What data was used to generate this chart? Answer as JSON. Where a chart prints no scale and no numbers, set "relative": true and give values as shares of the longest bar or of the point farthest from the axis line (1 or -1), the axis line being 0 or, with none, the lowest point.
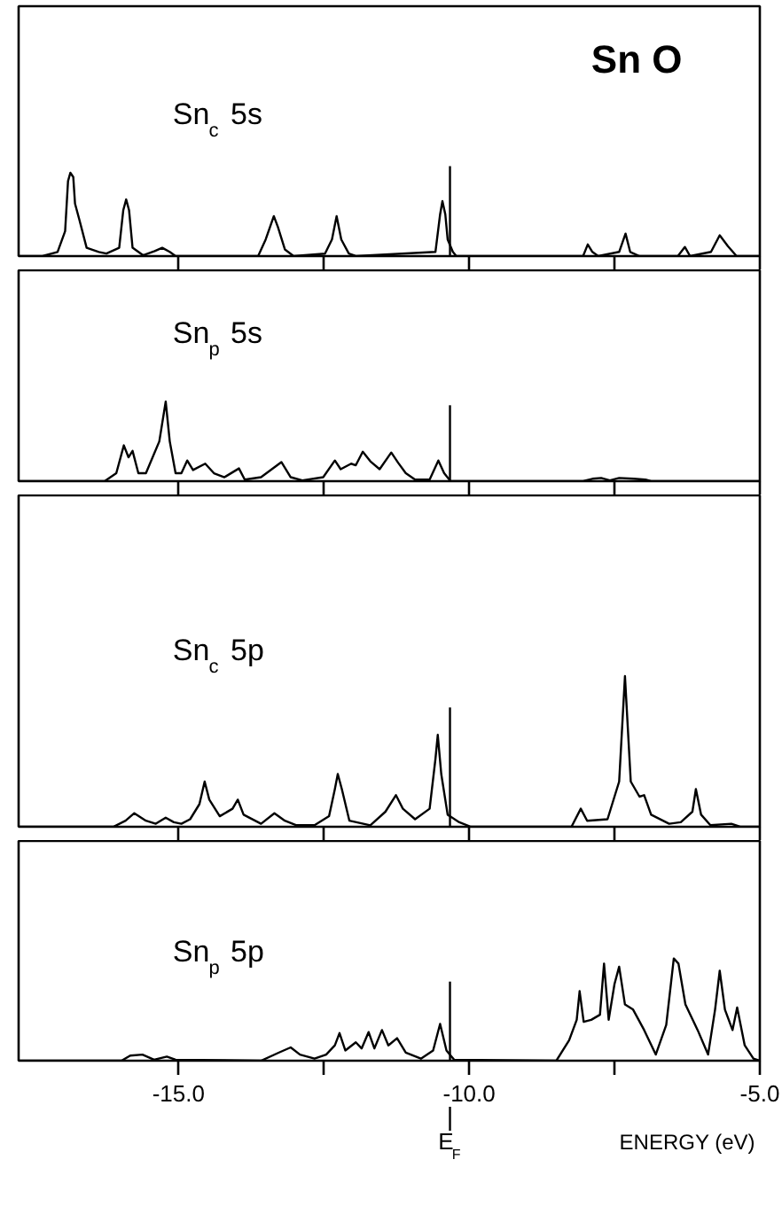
{
  "chart_data": [
    {
      "type": "line",
      "relative": true,
      "title": "Sn$_{c}$ 5s",
      "annotations": [
        "Sn O"
      ],
      "xlim": [
        -17.75,
        -5.0
      ],
      "xticks": [
        {
          "value": -15,
          "label": null
        },
        {
          "value": -12.5,
          "label": null
        },
        {
          "value": -10,
          "label": null
        },
        {
          "value": -7.5,
          "label": null
        },
        {
          "value": -5,
          "label": null
        }
      ],
      "tick_labels": false,
      "ref_lines": [
        {
          "axis": "x",
          "value": -10.33
        }
      ],
      "x": [
        -17.74,
        -17.34,
        -17.08,
        -16.95,
        -16.9,
        -16.86,
        -16.81,
        -16.78,
        -16.71,
        -16.58,
        -16.37,
        -16.24,
        -16.02,
        -15.95,
        -15.9,
        -15.85,
        -15.79,
        -15.61,
        -15.41,
        -15.28,
        -15.15,
        -15.05,
        -13.63,
        -13.5,
        -13.36,
        -13.29,
        -13.17,
        -13.02,
        -12.48,
        -12.36,
        -12.28,
        -12.2,
        -12.07,
        -11.95,
        -10.58,
        -10.5,
        -10.46,
        -10.41,
        -10.37,
        -10.28,
        -10.22,
        -8.04,
        -7.96,
        -7.88,
        -7.78,
        -7.42,
        -7.31,
        -7.23,
        -7.07,
        -6.41,
        -6.29,
        -6.2,
        -5.84,
        -5.69,
        -5.55,
        -5.4,
        -5.0
      ],
      "series": [
        {
          "color": "#000000",
          "values": [
            0,
            0,
            0.05,
            0.3,
            0.9,
            1.0,
            0.95,
            0.63,
            0.45,
            0.1,
            0.05,
            0.03,
            0.1,
            0.55,
            0.68,
            0.55,
            0.1,
            0.01,
            0.06,
            0.1,
            0.05,
            0,
            0,
            0.2,
            0.48,
            0.35,
            0.08,
            0,
            0.03,
            0.2,
            0.48,
            0.2,
            0.03,
            0,
            0.05,
            0.5,
            0.66,
            0.5,
            0.2,
            0.05,
            0,
            0,
            0.14,
            0.05,
            0,
            0.05,
            0.27,
            0.05,
            0,
            0,
            0.11,
            0,
            0.05,
            0.25,
            0.12,
            0,
            0
          ]
        }
      ]
    },
    {
      "type": "line",
      "relative": true,
      "title": "Sn$_{p}$ 5s",
      "xlim": [
        -17.75,
        -5.0
      ],
      "xticks": [
        {
          "value": -15,
          "label": null
        },
        {
          "value": -12.5,
          "label": null
        },
        {
          "value": -10,
          "label": null
        },
        {
          "value": -7.5,
          "label": null
        },
        {
          "value": -5,
          "label": null
        }
      ],
      "tick_labels": false,
      "ref_lines": [
        {
          "axis": "x",
          "value": -10.33
        }
      ],
      "x": [
        -17.74,
        -16.27,
        -16.07,
        -15.94,
        -15.86,
        -15.79,
        -15.69,
        -15.56,
        -15.33,
        -15.22,
        -15.15,
        -15.05,
        -14.95,
        -14.85,
        -14.75,
        -14.54,
        -14.39,
        -14.21,
        -13.96,
        -13.86,
        -13.58,
        -13.23,
        -13.07,
        -12.87,
        -12.51,
        -12.31,
        -12.21,
        -12.03,
        -11.95,
        -11.83,
        -11.7,
        -11.54,
        -11.34,
        -11.22,
        -11.09,
        -10.93,
        -10.68,
        -10.53,
        -10.43,
        -10.32,
        -8.04,
        -7.88,
        -7.73,
        -7.58,
        -7.42,
        -7.17,
        -6.97,
        -6.87,
        -5.0
      ],
      "series": [
        {
          "color": "#000000",
          "values": [
            0,
            0,
            0.1,
            0.45,
            0.3,
            0.38,
            0.1,
            0.1,
            0.5,
            1.0,
            0.5,
            0.1,
            0.1,
            0.26,
            0.14,
            0.22,
            0.1,
            0.05,
            0.16,
            0.02,
            0.05,
            0.24,
            0.05,
            0.01,
            0.05,
            0.26,
            0.15,
            0.22,
            0.2,
            0.37,
            0.25,
            0.15,
            0.36,
            0.23,
            0.1,
            0.02,
            0.02,
            0.26,
            0.1,
            0,
            0,
            0.03,
            0.04,
            0.01,
            0.04,
            0.03,
            0.02,
            0,
            0
          ]
        }
      ]
    },
    {
      "type": "line",
      "relative": true,
      "title": "Sn$_{c}$ 5p",
      "xlim": [
        -17.75,
        -5.0
      ],
      "xticks": [
        {
          "value": -15,
          "label": null
        },
        {
          "value": -12.5,
          "label": null
        },
        {
          "value": -10,
          "label": null
        },
        {
          "value": -7.5,
          "label": null
        },
        {
          "value": -5,
          "label": null
        }
      ],
      "tick_labels": false,
      "ref_lines": [
        {
          "axis": "x",
          "value": -10.33
        }
      ],
      "x": [
        -17.74,
        -16.12,
        -15.91,
        -15.76,
        -15.56,
        -15.39,
        -15.22,
        -15.08,
        -14.95,
        -14.8,
        -14.64,
        -14.55,
        -14.47,
        -14.29,
        -14.07,
        -13.98,
        -13.88,
        -13.58,
        -13.35,
        -13.17,
        -12.97,
        -12.66,
        -12.41,
        -12.31,
        -12.26,
        -12.19,
        -12.06,
        -11.7,
        -11.44,
        -11.26,
        -11.14,
        -10.93,
        -10.68,
        -10.58,
        -10.54,
        -10.48,
        -10.37,
        -10.17,
        -9.97,
        -8.24,
        -8.08,
        -7.97,
        -7.62,
        -7.42,
        -7.32,
        -7.22,
        -7.07,
        -6.99,
        -6.87,
        -6.56,
        -6.36,
        -6.16,
        -6.1,
        -6.01,
        -5.85,
        -5.49,
        -5.34,
        -5.0
      ],
      "series": [
        {
          "color": "#000000",
          "values": [
            0,
            0,
            0.04,
            0.09,
            0.04,
            0.02,
            0.06,
            0.03,
            0.02,
            0.05,
            0.15,
            0.3,
            0.18,
            0.07,
            0.12,
            0.18,
            0.08,
            0.02,
            0.09,
            0.04,
            0.01,
            0.01,
            0.07,
            0.25,
            0.35,
            0.25,
            0.04,
            0.01,
            0.1,
            0.21,
            0.12,
            0.05,
            0.12,
            0.45,
            0.61,
            0.35,
            0.08,
            0.03,
            0,
            0,
            0.12,
            0.04,
            0.05,
            0.3,
            1.0,
            0.3,
            0.2,
            0.21,
            0.08,
            0.02,
            0.03,
            0.1,
            0.25,
            0.08,
            0.01,
            0.02,
            0,
            0
          ]
        }
      ]
    },
    {
      "type": "line",
      "relative": true,
      "title": "Sn$_{p}$ 5p",
      "xlabel": "ENERGY (eV)",
      "xlim": [
        -17.75,
        -5.0
      ],
      "xticks": [
        {
          "value": -15,
          "label": "-15.0"
        },
        {
          "value": -12.5,
          "label": null
        },
        {
          "value": -10,
          "label": "-10.0"
        },
        {
          "value": -7.5,
          "label": null
        },
        {
          "value": -5,
          "label": "-5.0"
        }
      ],
      "tick_labels": "x",
      "ref_lines": [
        {
          "axis": "x",
          "value": -10.33,
          "label": "E$_{F}$"
        }
      ],
      "x": [
        -17.74,
        -15.98,
        -15.83,
        -15.62,
        -15.42,
        -15.2,
        -15.05,
        -13.58,
        -13.27,
        -13.07,
        -12.91,
        -12.66,
        -12.46,
        -12.31,
        -12.23,
        -12.13,
        -11.95,
        -11.85,
        -11.73,
        -11.63,
        -11.5,
        -11.39,
        -11.24,
        -11.09,
        -10.83,
        -10.62,
        -10.5,
        -10.39,
        -10.26,
        -8.5,
        -8.28,
        -8.15,
        -8.1,
        -8.03,
        -7.9,
        -7.75,
        -7.68,
        -7.6,
        -7.5,
        -7.42,
        -7.32,
        -7.18,
        -6.99,
        -6.79,
        -6.61,
        -6.48,
        -6.4,
        -6.28,
        -6.07,
        -5.89,
        -5.77,
        -5.69,
        -5.6,
        -5.47,
        -5.39,
        -5.26,
        -5.11,
        -5.0
      ],
      "series": [
        {
          "color": "#000000",
          "values": [
            0,
            0,
            0.05,
            0.06,
            0.01,
            0.04,
            0.01,
            0,
            0.08,
            0.13,
            0.06,
            0.02,
            0.06,
            0.15,
            0.27,
            0.1,
            0.18,
            0.12,
            0.28,
            0.12,
            0.3,
            0.15,
            0.22,
            0.08,
            0.02,
            0.1,
            0.36,
            0.1,
            0.01,
            0,
            0.2,
            0.4,
            0.68,
            0.38,
            0.4,
            0.45,
            0.95,
            0.4,
            0.75,
            0.92,
            0.55,
            0.5,
            0.3,
            0.06,
            0.35,
            1.0,
            0.95,
            0.55,
            0.3,
            0.06,
            0.5,
            0.88,
            0.5,
            0.3,
            0.52,
            0.15,
            0.02,
            0
          ]
        }
      ]
    }
  ]
}
